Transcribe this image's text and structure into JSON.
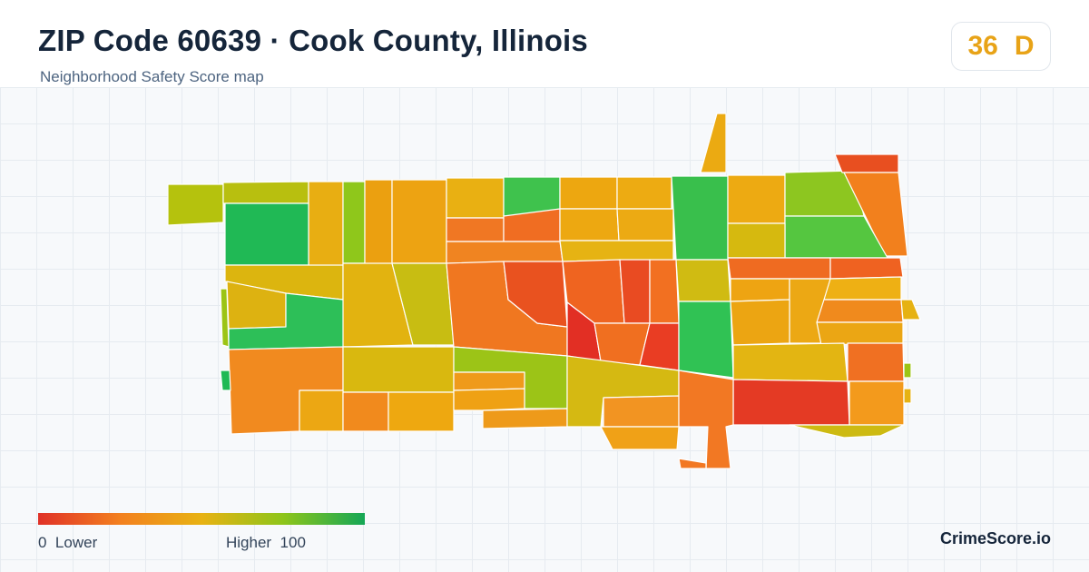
{
  "header": {
    "title": "ZIP Code 60639 · Cook County, Illinois",
    "subtitle": "Neighborhood Safety Score map"
  },
  "score": {
    "value": "36",
    "grade": "D",
    "color": "#e8a317"
  },
  "legend": {
    "low_value": "0",
    "low_label": "Lower",
    "high_label": "Higher",
    "high_value": "100",
    "gradient_colors": [
      "#e03127",
      "#f3801f",
      "#e8b213",
      "#8ec51a",
      "#15a756"
    ]
  },
  "brand": "CrimeScore.io"
}
